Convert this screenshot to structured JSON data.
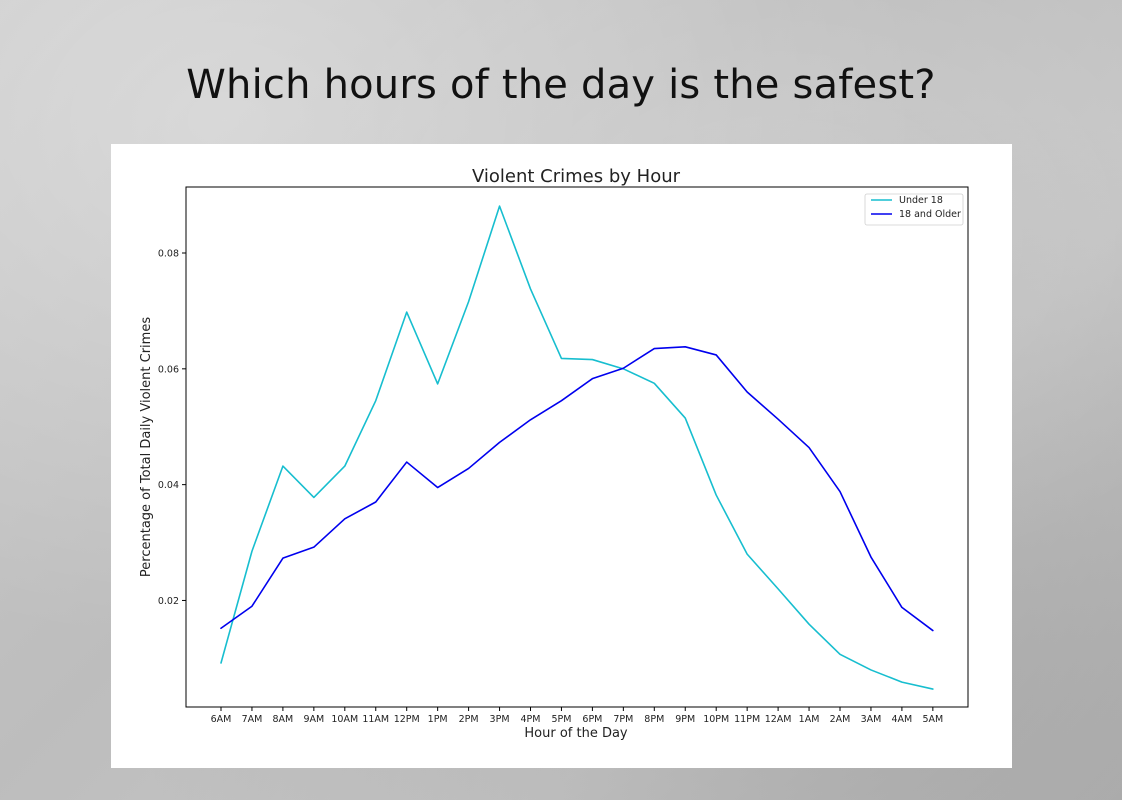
{
  "slide": {
    "title": "Which hours of the day is the safest?"
  },
  "chart_data": {
    "type": "line",
    "title": "Violent Crimes by Hour",
    "xlabel": "Hour of the Day",
    "ylabel": "Percentage of Total Daily Violent Crimes",
    "categories": [
      "6AM",
      "7AM",
      "8AM",
      "9AM",
      "10AM",
      "11AM",
      "12PM",
      "1PM",
      "2PM",
      "3PM",
      "4PM",
      "5PM",
      "6PM",
      "7PM",
      "8PM",
      "9PM",
      "10PM",
      "11PM",
      "12AM",
      "1AM",
      "2AM",
      "3AM",
      "4AM",
      "5AM"
    ],
    "series": [
      {
        "name": "Under 18",
        "color": "#17becf",
        "values": [
          0.0092,
          0.0285,
          0.0432,
          0.0378,
          0.0432,
          0.0545,
          0.0698,
          0.0574,
          0.0716,
          0.0881,
          0.0738,
          0.0618,
          0.0616,
          0.06,
          0.0575,
          0.0515,
          0.0382,
          0.028,
          0.022,
          0.0159,
          0.0107,
          0.008,
          0.0059,
          0.0047
        ]
      },
      {
        "name": "18 and Older",
        "color": "#0000ee",
        "values": [
          0.0152,
          0.019,
          0.0273,
          0.0292,
          0.0341,
          0.037,
          0.0439,
          0.0395,
          0.0428,
          0.0473,
          0.0512,
          0.0545,
          0.0583,
          0.0601,
          0.0635,
          0.0638,
          0.0624,
          0.056,
          0.0513,
          0.0464,
          0.0388,
          0.0275,
          0.0188,
          0.0148
        ]
      }
    ],
    "yticks": [
      0.02,
      0.04,
      0.06,
      0.08
    ],
    "ytick_labels": [
      "0.02",
      "0.04",
      "0.06",
      "0.08"
    ],
    "ylim": [
      0.0016,
      0.0914
    ],
    "grid": false,
    "legend_position": "top-right"
  }
}
